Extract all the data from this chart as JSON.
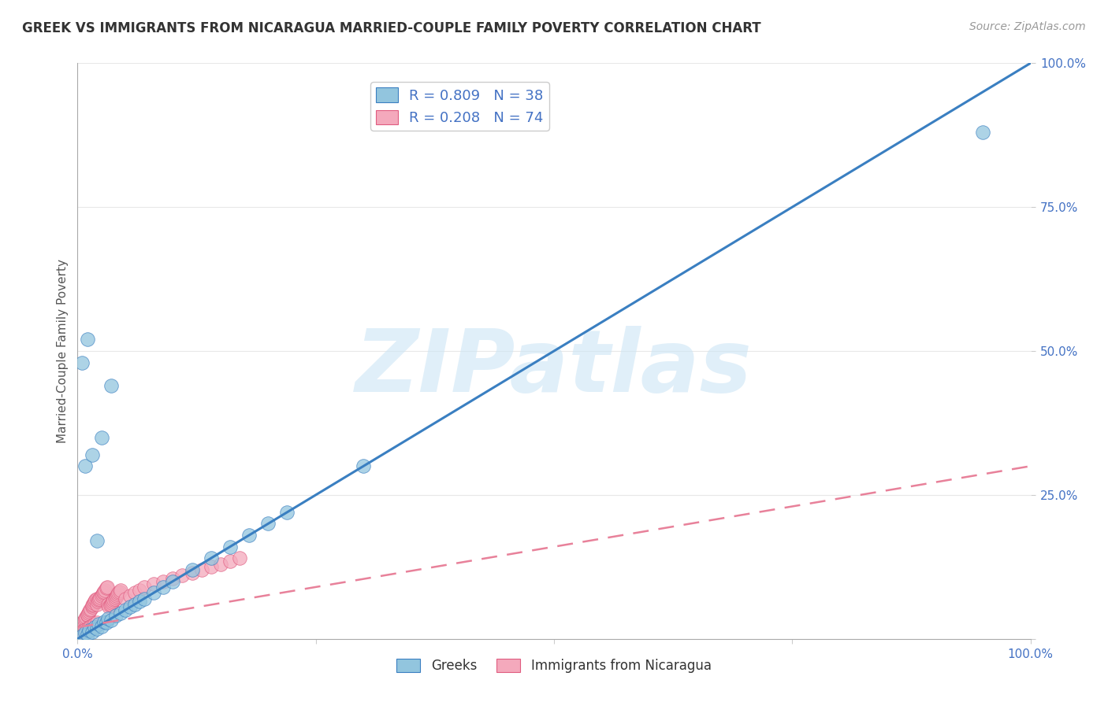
{
  "title": "GREEK VS IMMIGRANTS FROM NICARAGUA MARRIED-COUPLE FAMILY POVERTY CORRELATION CHART",
  "source": "Source: ZipAtlas.com",
  "ylabel": "Married-Couple Family Poverty",
  "watermark": "ZIPatlas",
  "legend_entries": [
    {
      "label": "R = 0.809   N = 38",
      "color": "#92c5de"
    },
    {
      "label": "R = 0.208   N = 74",
      "color": "#f4a9bc"
    }
  ],
  "legend_bottom": [
    "Greeks",
    "Immigrants from Nicaragua"
  ],
  "blue_color": "#92c5de",
  "blue_edge_color": "#3a7fc1",
  "pink_color": "#f4a9bc",
  "pink_edge_color": "#e05c80",
  "blue_line_color": "#3a7fc1",
  "pink_line_color": "#e8819a",
  "axis_color": "#4472c4",
  "title_color": "#333333",
  "background_color": "#ffffff",
  "grid_color": "#e8e8e8",
  "blue_slope": 1.0,
  "blue_intercept": 0.0,
  "pink_slope": 0.28,
  "pink_intercept": 0.02,
  "blue_points_x": [
    0.005,
    0.008,
    0.01,
    0.012,
    0.015,
    0.018,
    0.02,
    0.022,
    0.025,
    0.028,
    0.03,
    0.032,
    0.035,
    0.04,
    0.045,
    0.05,
    0.055,
    0.06,
    0.065,
    0.07,
    0.08,
    0.09,
    0.1,
    0.12,
    0.14,
    0.16,
    0.18,
    0.2,
    0.22,
    0.008,
    0.015,
    0.025,
    0.035,
    0.005,
    0.01,
    0.02,
    0.95,
    0.3
  ],
  "blue_points_y": [
    0.005,
    0.01,
    0.008,
    0.015,
    0.012,
    0.02,
    0.018,
    0.025,
    0.022,
    0.03,
    0.028,
    0.035,
    0.032,
    0.04,
    0.045,
    0.05,
    0.055,
    0.06,
    0.065,
    0.07,
    0.08,
    0.09,
    0.1,
    0.12,
    0.14,
    0.16,
    0.18,
    0.2,
    0.22,
    0.3,
    0.32,
    0.35,
    0.44,
    0.48,
    0.52,
    0.17,
    0.88,
    0.3
  ],
  "pink_points_x": [
    0.001,
    0.002,
    0.003,
    0.004,
    0.005,
    0.005,
    0.006,
    0.007,
    0.008,
    0.009,
    0.01,
    0.01,
    0.011,
    0.012,
    0.013,
    0.014,
    0.015,
    0.015,
    0.016,
    0.017,
    0.018,
    0.019,
    0.02,
    0.02,
    0.021,
    0.022,
    0.023,
    0.024,
    0.025,
    0.026,
    0.027,
    0.028,
    0.029,
    0.03,
    0.031,
    0.032,
    0.033,
    0.034,
    0.035,
    0.036,
    0.037,
    0.038,
    0.039,
    0.04,
    0.041,
    0.042,
    0.043,
    0.044,
    0.045,
    0.05,
    0.055,
    0.06,
    0.065,
    0.07,
    0.08,
    0.09,
    0.1,
    0.11,
    0.12,
    0.13,
    0.14,
    0.15,
    0.16,
    0.17,
    0.002,
    0.004,
    0.006,
    0.008,
    0.01,
    0.012,
    0.014,
    0.016,
    0.018,
    0.02
  ],
  "pink_points_y": [
    0.015,
    0.018,
    0.02,
    0.022,
    0.025,
    0.028,
    0.03,
    0.032,
    0.035,
    0.038,
    0.04,
    0.042,
    0.045,
    0.048,
    0.05,
    0.052,
    0.055,
    0.058,
    0.06,
    0.062,
    0.065,
    0.068,
    0.07,
    0.06,
    0.065,
    0.068,
    0.07,
    0.072,
    0.075,
    0.078,
    0.08,
    0.082,
    0.085,
    0.088,
    0.09,
    0.06,
    0.055,
    0.058,
    0.06,
    0.062,
    0.065,
    0.068,
    0.07,
    0.072,
    0.075,
    0.078,
    0.08,
    0.082,
    0.085,
    0.07,
    0.075,
    0.08,
    0.085,
    0.09,
    0.095,
    0.1,
    0.105,
    0.11,
    0.115,
    0.12,
    0.125,
    0.13,
    0.135,
    0.14,
    0.01,
    0.012,
    0.014,
    0.016,
    0.018,
    0.02,
    0.022,
    0.024,
    0.026,
    0.028
  ]
}
